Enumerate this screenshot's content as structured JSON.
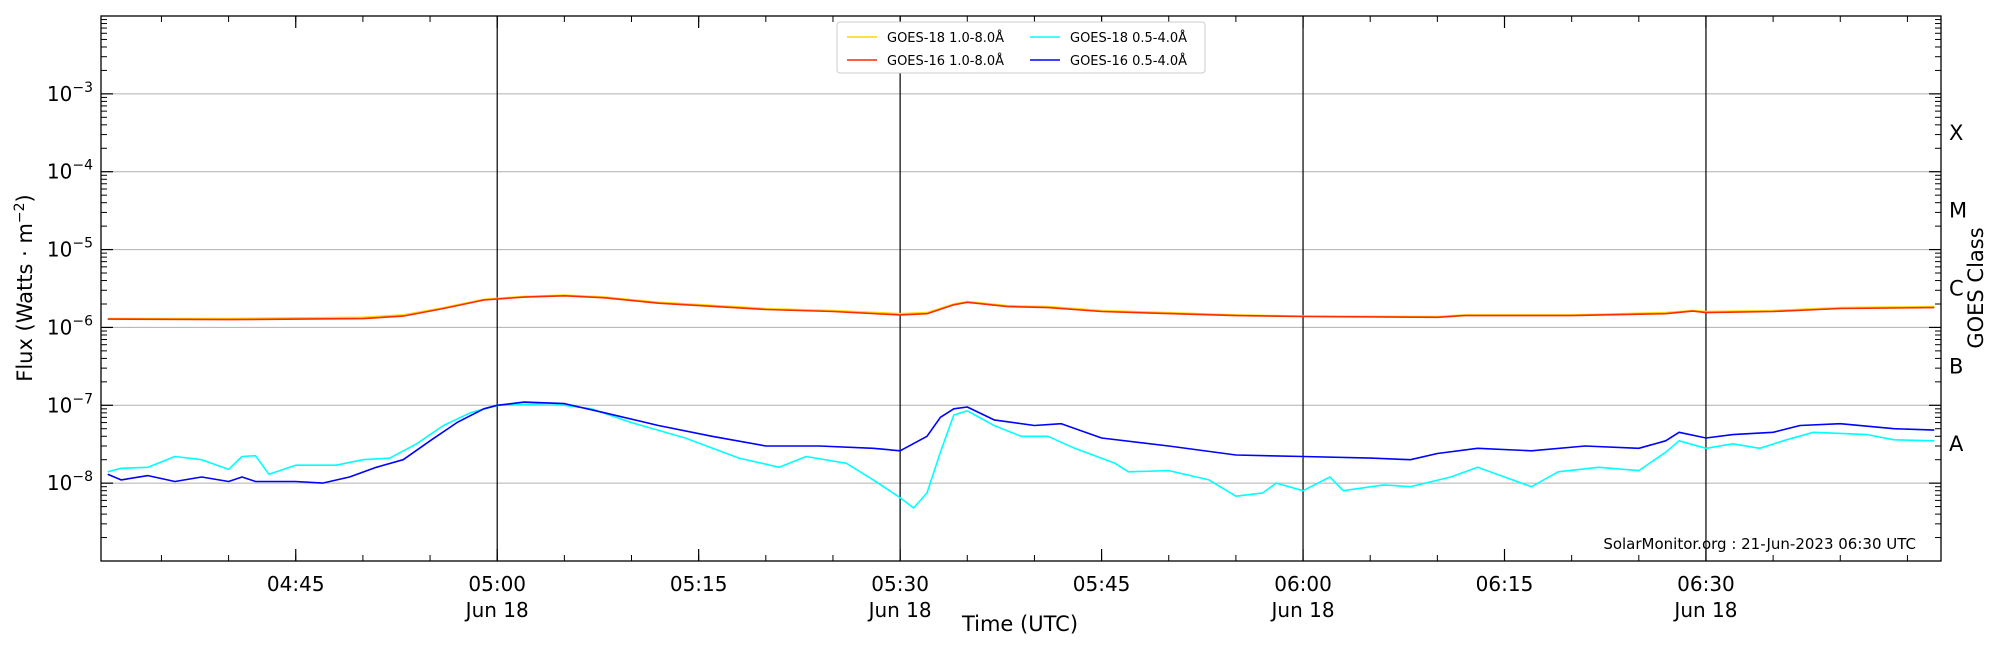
{
  "chart_data": {
    "type": "line",
    "xlabel": "Time (UTC)",
    "ylabel_main": "Flux (Watts · m",
    "ylabel_sup": "−2",
    "ylabel_close": ")",
    "y_right_label": "GOES Class",
    "y_scale": "log",
    "ylim": [
      1e-09,
      0.01
    ],
    "xlim": [
      "04:30:30",
      "06:47:30"
    ],
    "date": "Jun 18",
    "x_ticks": [
      {
        "t": "04:45",
        "label": "04:45",
        "sub": ""
      },
      {
        "t": "05:00",
        "label": "05:00",
        "sub": "Jun 18"
      },
      {
        "t": "05:15",
        "label": "05:15",
        "sub": ""
      },
      {
        "t": "05:30",
        "label": "05:30",
        "sub": "Jun 18"
      },
      {
        "t": "05:45",
        "label": "05:45",
        "sub": ""
      },
      {
        "t": "06:00",
        "label": "06:00",
        "sub": "Jun 18"
      },
      {
        "t": "06:15",
        "label": "06:15",
        "sub": ""
      },
      {
        "t": "06:30",
        "label": "06:30",
        "sub": "Jun 18"
      }
    ],
    "y_ticks": [
      {
        "exp": -8,
        "base": "10",
        "sup": "−8"
      },
      {
        "exp": -7,
        "base": "10",
        "sup": "−7"
      },
      {
        "exp": -6,
        "base": "10",
        "sup": "−6"
      },
      {
        "exp": -5,
        "base": "10",
        "sup": "−5"
      },
      {
        "exp": -4,
        "base": "10",
        "sup": "−4"
      },
      {
        "exp": -3,
        "base": "10",
        "sup": "−3"
      }
    ],
    "goes_classes": [
      {
        "label": "A",
        "exp": -7.5
      },
      {
        "label": "B",
        "exp": -6.5
      },
      {
        "label": "C",
        "exp": -5.5
      },
      {
        "label": "M",
        "exp": -4.5
      },
      {
        "label": "X",
        "exp": -3.5
      }
    ],
    "hour_markers": [
      "05:00",
      "05:30",
      "06:00",
      "06:30"
    ],
    "grid": "horizontal at major y ticks",
    "legend_position": "top-center",
    "annotation": "SolarMonitor.org : 21-Jun-2023 06:30 UTC",
    "series": [
      {
        "name": "GOES-18 1.0-8.0Å",
        "color": "#ffd700",
        "legend_slot": 0,
        "points": [
          [
            "04:31",
            1.3e-06
          ],
          [
            "04:40",
            1.3e-06
          ],
          [
            "04:50",
            1.35e-06
          ],
          [
            "04:53",
            1.45e-06
          ],
          [
            "04:56",
            1.8e-06
          ],
          [
            "04:59",
            2.3e-06
          ],
          [
            "05:02",
            2.5e-06
          ],
          [
            "05:05",
            2.6e-06
          ],
          [
            "05:08",
            2.45e-06
          ],
          [
            "05:12",
            2.1e-06
          ],
          [
            "05:20",
            1.75e-06
          ],
          [
            "05:25",
            1.65e-06
          ],
          [
            "05:30",
            1.5e-06
          ],
          [
            "05:32",
            1.55e-06
          ],
          [
            "05:34",
            2e-06
          ],
          [
            "05:35",
            2.15e-06
          ],
          [
            "05:38",
            1.9e-06
          ],
          [
            "05:41",
            1.85e-06
          ],
          [
            "05:45",
            1.65e-06
          ],
          [
            "05:55",
            1.45e-06
          ],
          [
            "06:00",
            1.4e-06
          ],
          [
            "06:10",
            1.38e-06
          ],
          [
            "06:12",
            1.45e-06
          ],
          [
            "06:20",
            1.45e-06
          ],
          [
            "06:27",
            1.55e-06
          ],
          [
            "06:29",
            1.65e-06
          ],
          [
            "06:30",
            1.6e-06
          ],
          [
            "06:35",
            1.65e-06
          ],
          [
            "06:40",
            1.8e-06
          ],
          [
            "06:47",
            1.85e-06
          ]
        ]
      },
      {
        "name": "GOES-16 1.0-8.0Å",
        "color": "#ff2a00",
        "legend_slot": 1,
        "points": [
          [
            "04:31",
            1.28e-06
          ],
          [
            "04:40",
            1.26e-06
          ],
          [
            "04:50",
            1.3e-06
          ],
          [
            "04:53",
            1.4e-06
          ],
          [
            "04:56",
            1.75e-06
          ],
          [
            "04:59",
            2.25e-06
          ],
          [
            "05:02",
            2.45e-06
          ],
          [
            "05:05",
            2.55e-06
          ],
          [
            "05:08",
            2.4e-06
          ],
          [
            "05:12",
            2.05e-06
          ],
          [
            "05:20",
            1.7e-06
          ],
          [
            "05:25",
            1.6e-06
          ],
          [
            "05:30",
            1.45e-06
          ],
          [
            "05:32",
            1.5e-06
          ],
          [
            "05:34",
            1.95e-06
          ],
          [
            "05:35",
            2.1e-06
          ],
          [
            "05:38",
            1.85e-06
          ],
          [
            "05:41",
            1.8e-06
          ],
          [
            "05:45",
            1.6e-06
          ],
          [
            "05:55",
            1.42e-06
          ],
          [
            "06:00",
            1.38e-06
          ],
          [
            "06:10",
            1.35e-06
          ],
          [
            "06:12",
            1.42e-06
          ],
          [
            "06:20",
            1.42e-06
          ],
          [
            "06:27",
            1.5e-06
          ],
          [
            "06:29",
            1.62e-06
          ],
          [
            "06:30",
            1.55e-06
          ],
          [
            "06:35",
            1.6e-06
          ],
          [
            "06:40",
            1.75e-06
          ],
          [
            "06:47",
            1.8e-06
          ]
        ]
      },
      {
        "name": "GOES-18 0.5-4.0Å",
        "color": "#00ffff",
        "legend_slot": 2,
        "points": [
          [
            "04:31",
            1.4e-08
          ],
          [
            "04:32",
            1.55e-08
          ],
          [
            "04:34",
            1.6e-08
          ],
          [
            "04:36",
            2.2e-08
          ],
          [
            "04:38",
            2e-08
          ],
          [
            "04:40",
            1.5e-08
          ],
          [
            "04:41",
            2.2e-08
          ],
          [
            "04:42",
            2.25e-08
          ],
          [
            "04:43",
            1.3e-08
          ],
          [
            "04:45",
            1.7e-08
          ],
          [
            "04:48",
            1.7e-08
          ],
          [
            "04:50",
            2e-08
          ],
          [
            "04:52",
            2.1e-08
          ],
          [
            "04:54",
            3.2e-08
          ],
          [
            "04:56",
            5.5e-08
          ],
          [
            "04:58",
            8e-08
          ],
          [
            "05:00",
            1e-07
          ],
          [
            "05:04",
            1.05e-07
          ],
          [
            "05:07",
            9e-08
          ],
          [
            "05:10",
            6e-08
          ],
          [
            "05:14",
            3.8e-08
          ],
          [
            "05:18",
            2.1e-08
          ],
          [
            "05:21",
            1.6e-08
          ],
          [
            "05:23",
            2.2e-08
          ],
          [
            "05:26",
            1.8e-08
          ],
          [
            "05:28",
            1.1e-08
          ],
          [
            "05:30",
            6.5e-09
          ],
          [
            "05:31",
            4.8e-09
          ],
          [
            "05:32",
            7.5e-09
          ],
          [
            "05:33",
            2.5e-08
          ],
          [
            "05:34",
            7.5e-08
          ],
          [
            "05:35",
            8.5e-08
          ],
          [
            "05:37",
            5.5e-08
          ],
          [
            "05:39",
            4e-08
          ],
          [
            "05:41",
            4e-08
          ],
          [
            "05:43",
            2.8e-08
          ],
          [
            "05:46",
            1.8e-08
          ],
          [
            "05:47",
            1.4e-08
          ],
          [
            "05:50",
            1.45e-08
          ],
          [
            "05:53",
            1.1e-08
          ],
          [
            "05:55",
            6.8e-09
          ],
          [
            "05:57",
            7.5e-09
          ],
          [
            "05:58",
            1e-08
          ],
          [
            "06:00",
            8e-09
          ],
          [
            "06:02",
            1.2e-08
          ],
          [
            "06:03",
            8e-09
          ],
          [
            "06:06",
            9.5e-09
          ],
          [
            "06:08",
            9e-09
          ],
          [
            "06:11",
            1.2e-08
          ],
          [
            "06:13",
            1.6e-08
          ],
          [
            "06:15",
            1.2e-08
          ],
          [
            "06:17",
            9e-09
          ],
          [
            "06:19",
            1.4e-08
          ],
          [
            "06:22",
            1.6e-08
          ],
          [
            "06:25",
            1.45e-08
          ],
          [
            "06:27",
            2.5e-08
          ],
          [
            "06:28",
            3.5e-08
          ],
          [
            "06:30",
            2.8e-08
          ],
          [
            "06:32",
            3.2e-08
          ],
          [
            "06:34",
            2.8e-08
          ],
          [
            "06:36",
            3.6e-08
          ],
          [
            "06:38",
            4.5e-08
          ],
          [
            "06:42",
            4.2e-08
          ],
          [
            "06:44",
            3.6e-08
          ],
          [
            "06:47",
            3.5e-08
          ]
        ]
      },
      {
        "name": "GOES-16 0.5-4.0Å",
        "color": "#0000ff",
        "legend_slot": 3,
        "points": [
          [
            "04:31",
            1.3e-08
          ],
          [
            "04:32",
            1.1e-08
          ],
          [
            "04:34",
            1.25e-08
          ],
          [
            "04:36",
            1.05e-08
          ],
          [
            "04:38",
            1.2e-08
          ],
          [
            "04:40",
            1.05e-08
          ],
          [
            "04:41",
            1.2e-08
          ],
          [
            "04:42",
            1.05e-08
          ],
          [
            "04:45",
            1.05e-08
          ],
          [
            "04:47",
            1e-08
          ],
          [
            "04:49",
            1.2e-08
          ],
          [
            "04:51",
            1.6e-08
          ],
          [
            "04:53",
            2e-08
          ],
          [
            "04:55",
            3.5e-08
          ],
          [
            "04:57",
            6e-08
          ],
          [
            "04:59",
            9e-08
          ],
          [
            "05:00",
            1e-07
          ],
          [
            "05:02",
            1.1e-07
          ],
          [
            "05:05",
            1.05e-07
          ],
          [
            "05:08",
            8e-08
          ],
          [
            "05:12",
            5.5e-08
          ],
          [
            "05:16",
            4e-08
          ],
          [
            "05:20",
            3e-08
          ],
          [
            "05:24",
            3e-08
          ],
          [
            "05:28",
            2.8e-08
          ],
          [
            "05:30",
            2.6e-08
          ],
          [
            "05:32",
            4e-08
          ],
          [
            "05:33",
            7e-08
          ],
          [
            "05:34",
            9e-08
          ],
          [
            "05:35",
            9.5e-08
          ],
          [
            "05:37",
            6.5e-08
          ],
          [
            "05:40",
            5.5e-08
          ],
          [
            "05:42",
            5.8e-08
          ],
          [
            "05:45",
            3.8e-08
          ],
          [
            "05:50",
            3e-08
          ],
          [
            "05:55",
            2.3e-08
          ],
          [
            "06:00",
            2.2e-08
          ],
          [
            "06:05",
            2.1e-08
          ],
          [
            "06:08",
            2e-08
          ],
          [
            "06:10",
            2.4e-08
          ],
          [
            "06:13",
            2.8e-08
          ],
          [
            "06:17",
            2.6e-08
          ],
          [
            "06:21",
            3e-08
          ],
          [
            "06:25",
            2.8e-08
          ],
          [
            "06:27",
            3.5e-08
          ],
          [
            "06:28",
            4.5e-08
          ],
          [
            "06:30",
            3.8e-08
          ],
          [
            "06:32",
            4.2e-08
          ],
          [
            "06:35",
            4.5e-08
          ],
          [
            "06:37",
            5.5e-08
          ],
          [
            "06:40",
            5.8e-08
          ],
          [
            "06:44",
            5e-08
          ],
          [
            "06:47",
            4.8e-08
          ]
        ]
      }
    ]
  }
}
